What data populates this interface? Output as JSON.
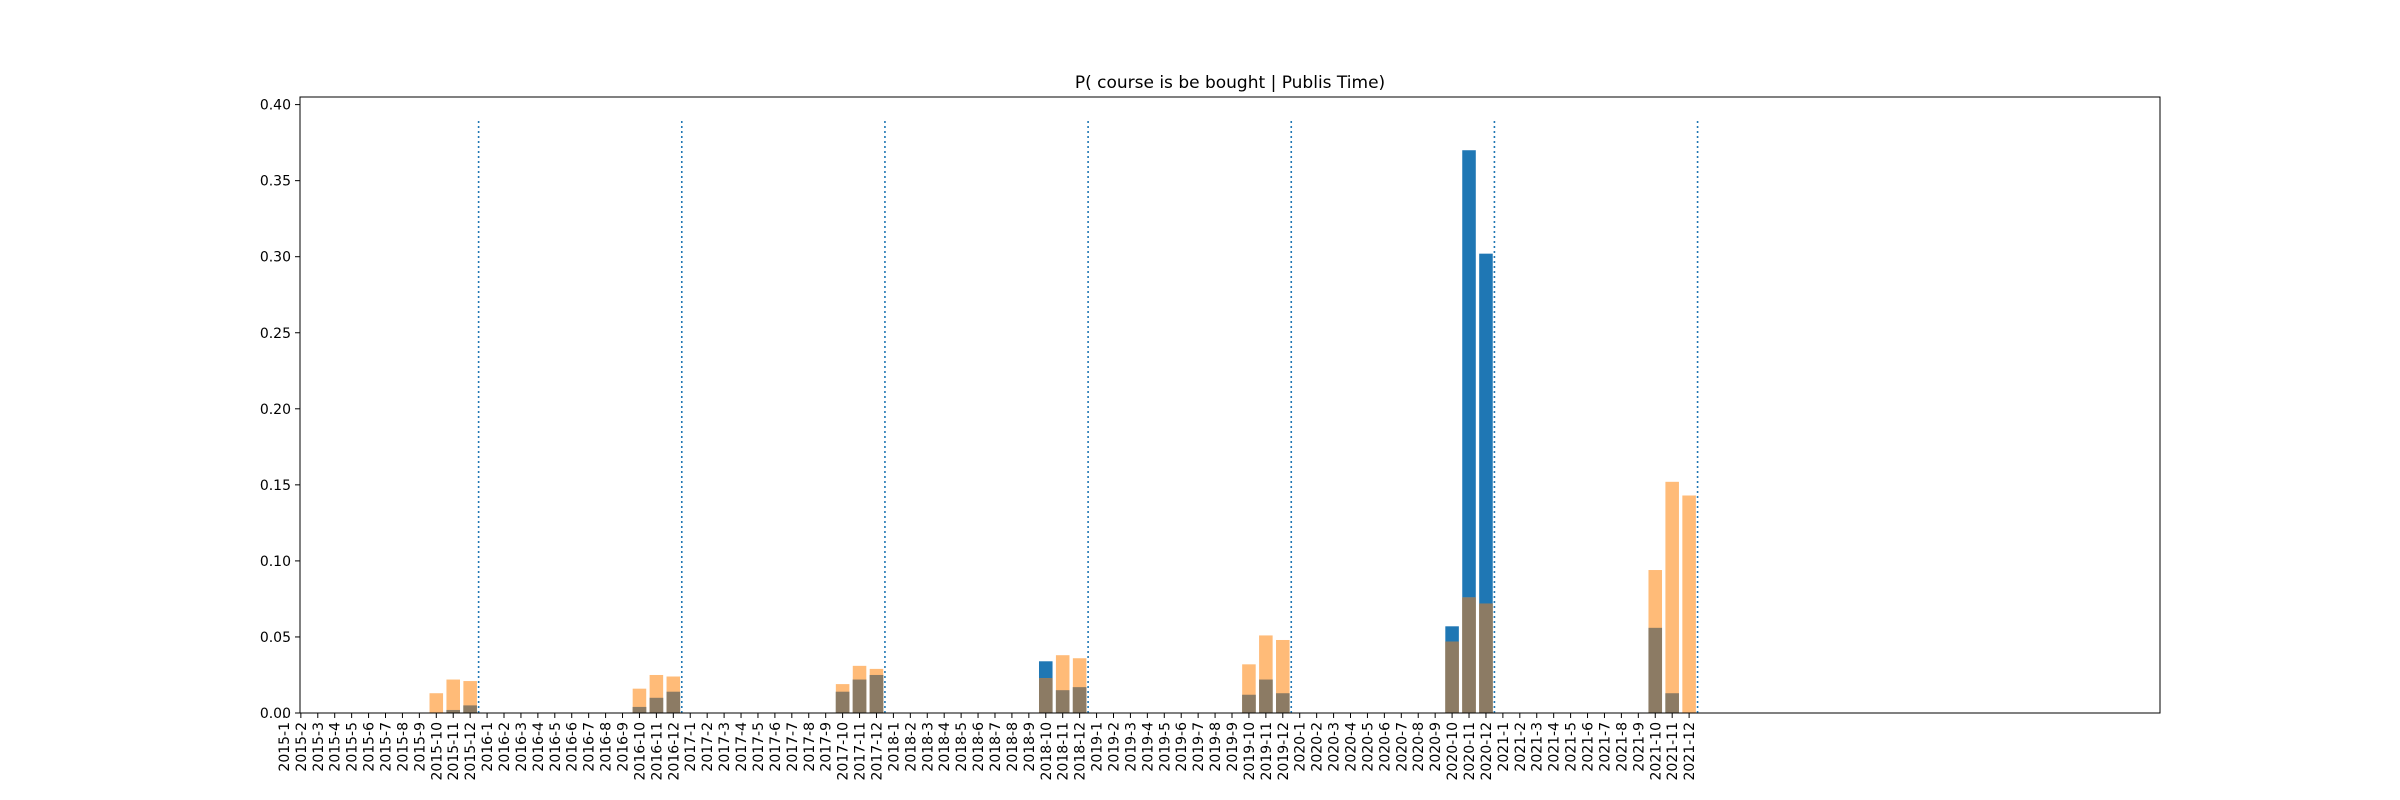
{
  "chart_data": {
    "type": "bar",
    "title": "P( course is be bought | Publis Time)",
    "xlabel": "",
    "ylabel": "",
    "ylim": [
      0,
      0.405
    ],
    "yticks": [
      "0.00",
      "0.05",
      "0.10",
      "0.15",
      "0.20",
      "0.25",
      "0.30",
      "0.35",
      "0.40"
    ],
    "grid": false,
    "legend": "none",
    "colors": {
      "series_a": "#1f77b4",
      "series_b": "#ffbb78",
      "overlap": "#8c7b64",
      "vline": "#1f77b4"
    },
    "categories": [
      "2015-1",
      "2015-2",
      "2015-3",
      "2015-4",
      "2015-5",
      "2015-6",
      "2015-7",
      "2015-8",
      "2015-9",
      "2015-10",
      "2015-11",
      "2015-12",
      "2016-1",
      "2016-2",
      "2016-3",
      "2016-4",
      "2016-5",
      "2016-6",
      "2016-7",
      "2016-8",
      "2016-9",
      "2016-10",
      "2016-11",
      "2016-12",
      "2017-1",
      "2017-2",
      "2017-3",
      "2017-4",
      "2017-5",
      "2017-6",
      "2017-7",
      "2017-8",
      "2017-9",
      "2017-10",
      "2017-11",
      "2017-12",
      "2018-1",
      "2018-2",
      "2018-3",
      "2018-4",
      "2018-5",
      "2018-6",
      "2018-7",
      "2018-8",
      "2018-9",
      "2018-10",
      "2018-11",
      "2018-12",
      "2019-1",
      "2019-2",
      "2019-3",
      "2019-4",
      "2019-5",
      "2019-6",
      "2019-7",
      "2019-8",
      "2019-9",
      "2019-10",
      "2019-11",
      "2019-12",
      "2020-1",
      "2020-2",
      "2020-3",
      "2020-4",
      "2020-5",
      "2020-6",
      "2020-7",
      "2020-8",
      "2020-9",
      "2020-10",
      "2020-11",
      "2020-12",
      "2021-1",
      "2021-2",
      "2021-3",
      "2021-4",
      "2021-5",
      "2021-6",
      "2021-7",
      "2021-8",
      "2021-9",
      "2021-10",
      "2021-11",
      "2021-12"
    ],
    "series": [
      {
        "values": [
          0,
          0,
          0,
          0,
          0,
          0,
          0,
          0,
          0,
          0,
          0.002,
          0.005,
          0,
          0,
          0,
          0,
          0,
          0,
          0,
          0,
          0,
          0.004,
          0.01,
          0.014,
          0,
          0,
          0,
          0,
          0,
          0,
          0,
          0,
          0,
          0.014,
          0.022,
          0.025,
          0,
          0,
          0,
          0,
          0,
          0,
          0,
          0,
          0,
          0.034,
          0.015,
          0.017,
          0,
          0,
          0,
          0,
          0,
          0,
          0,
          0,
          0,
          0.012,
          0.022,
          0.013,
          0,
          0,
          0,
          0,
          0,
          0,
          0,
          0,
          0,
          0.057,
          0.37,
          0.302,
          0,
          0,
          0,
          0,
          0,
          0,
          0,
          0,
          0,
          0.056,
          0.013,
          0
        ]
      },
      {
        "values": [
          0,
          0,
          0,
          0,
          0,
          0,
          0,
          0,
          0,
          0.013,
          0.022,
          0.021,
          0,
          0,
          0,
          0,
          0,
          0,
          0,
          0,
          0,
          0.016,
          0.025,
          0.024,
          0,
          0,
          0,
          0,
          0,
          0,
          0,
          0,
          0,
          0.019,
          0.031,
          0.029,
          0,
          0,
          0,
          0,
          0,
          0,
          0,
          0,
          0,
          0.023,
          0.038,
          0.036,
          0,
          0,
          0,
          0,
          0,
          0,
          0,
          0,
          0,
          0.032,
          0.051,
          0.048,
          0,
          0,
          0,
          0,
          0,
          0,
          0,
          0,
          0,
          0.047,
          0.076,
          0.072,
          0,
          0,
          0,
          0,
          0,
          0,
          0,
          0,
          0,
          0.094,
          0.152,
          0.143
        ]
      }
    ],
    "vlines": {
      "positions": [
        11.5,
        23.5,
        35.5,
        47.5,
        59.5,
        71.5,
        83.5
      ],
      "ymax": 0.39,
      "style": "dotted"
    }
  }
}
